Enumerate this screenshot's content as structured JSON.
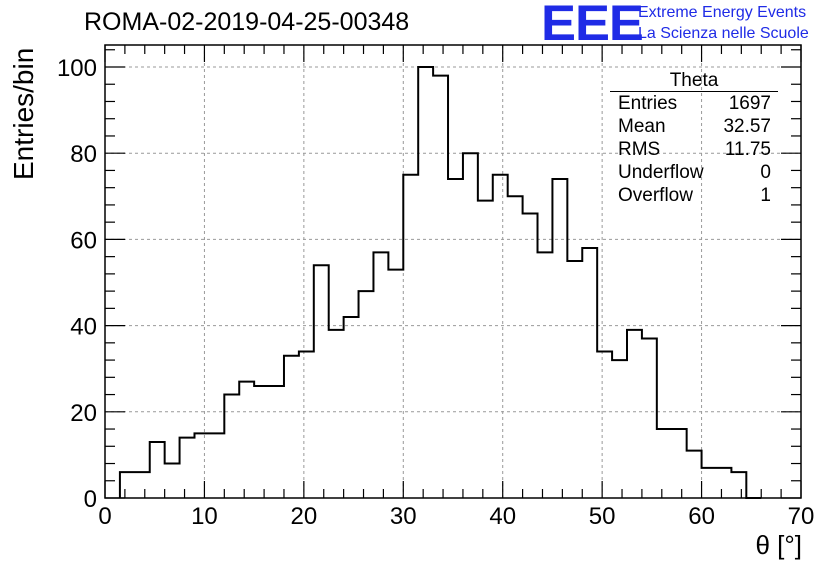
{
  "chart_data": {
    "type": "bar",
    "title": "ROMA-02-2019-04-25-00348",
    "xlabel": "θ [°]",
    "ylabel": "Entries/bin",
    "xlim": [
      0,
      70
    ],
    "ylim": [
      0,
      100
    ],
    "xticks": [
      0,
      10,
      20,
      30,
      40,
      50,
      60,
      70
    ],
    "yticks": [
      0,
      20,
      40,
      60,
      80,
      100
    ],
    "grid": true,
    "bin_width": 1.5,
    "bin_start": 1.5,
    "values": [
      6,
      6,
      13,
      8,
      14,
      15,
      15,
      24,
      27,
      26,
      26,
      33,
      34,
      54,
      39,
      42,
      48,
      57,
      53,
      75,
      100,
      98,
      74,
      80,
      69,
      75,
      70,
      66,
      57,
      74,
      55,
      58,
      34,
      32,
      39,
      37,
      16,
      16,
      11,
      7,
      7,
      6,
      0
    ],
    "stats_box": {
      "title": "Theta",
      "rows": [
        {
          "label": "Entries",
          "value": "1697"
        },
        {
          "label": "Mean",
          "value": "32.57"
        },
        {
          "label": "RMS",
          "value": "11.75"
        },
        {
          "label": "Underflow",
          "value": "0"
        },
        {
          "label": "Overflow",
          "value": "1"
        }
      ]
    }
  },
  "logo": {
    "mark": "EEE",
    "line1": "Extreme Energy Events",
    "line2": "La Scienza nelle Scuole"
  },
  "colors": {
    "logo": "#1f2be6",
    "line": "#000000",
    "grid": "#999999"
  }
}
